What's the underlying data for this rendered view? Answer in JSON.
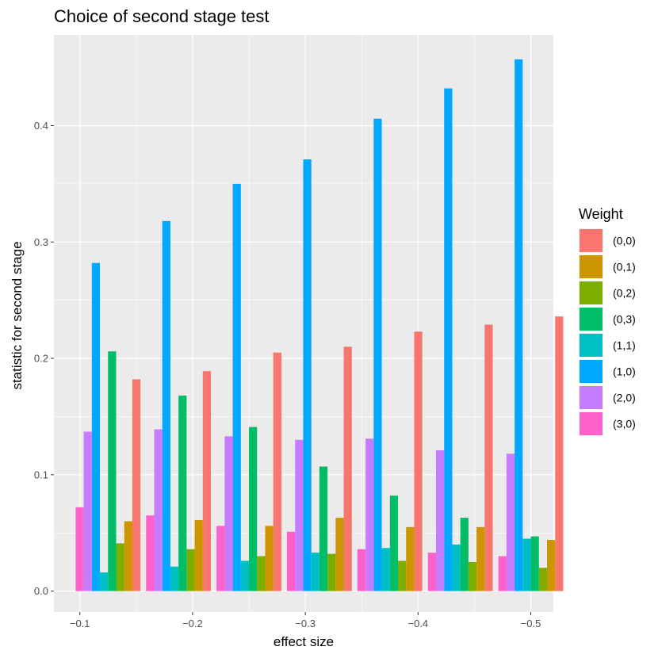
{
  "chart_data": {
    "type": "bar",
    "title": "Choice of second stage test",
    "xlabel": "effect size",
    "ylabel": "statistic for second stage",
    "ylim": [
      -0.018,
      0.478
    ],
    "yticks": [
      0.0,
      0.1,
      0.2,
      0.3,
      0.4
    ],
    "ytick_labels": [
      "0.0",
      "0.1",
      "0.2",
      "0.3",
      "0.4"
    ],
    "xlim": [
      -0.077,
      -0.52
    ],
    "xticks": [
      -0.1,
      -0.2,
      -0.3,
      -0.4,
      -0.5
    ],
    "xtick_labels": [
      "−0.1",
      "−0.2",
      "−0.3",
      "−0.4",
      "−0.5"
    ],
    "group_centers": [
      -0.125,
      -0.1875,
      -0.25,
      -0.3125,
      -0.375,
      -0.4375,
      -0.5
    ],
    "group_width": 0.0575,
    "grid": true,
    "legend": {
      "title": "Weight",
      "position": "right"
    },
    "series": [
      {
        "name": "(0,0)",
        "color": "#F8766D",
        "values": [
          0.182,
          0.189,
          0.205,
          0.21,
          0.223,
          0.229,
          0.236
        ]
      },
      {
        "name": "(0,1)",
        "color": "#CD9600",
        "values": [
          0.06,
          0.061,
          0.056,
          0.063,
          0.055,
          0.055,
          0.044
        ]
      },
      {
        "name": "(0,2)",
        "color": "#7CAE00",
        "values": [
          0.041,
          0.036,
          0.03,
          0.032,
          0.026,
          0.025,
          0.02
        ]
      },
      {
        "name": "(0,3)",
        "color": "#00BE67",
        "values": [
          0.206,
          0.168,
          0.141,
          0.107,
          0.082,
          0.063,
          0.047
        ]
      },
      {
        "name": "(1,1)",
        "color": "#00BFC4",
        "values": [
          0.016,
          0.021,
          0.026,
          0.033,
          0.037,
          0.04,
          0.045
        ]
      },
      {
        "name": "(1,0)",
        "color": "#00A9FF",
        "values": [
          0.282,
          0.318,
          0.35,
          0.371,
          0.406,
          0.432,
          0.457
        ]
      },
      {
        "name": "(2,0)",
        "color": "#C77CFF",
        "values": [
          0.137,
          0.139,
          0.133,
          0.13,
          0.131,
          0.121,
          0.118
        ]
      },
      {
        "name": "(3,0)",
        "color": "#FF61CC",
        "values": [
          0.072,
          0.065,
          0.056,
          0.051,
          0.036,
          0.033,
          0.03
        ]
      }
    ]
  }
}
